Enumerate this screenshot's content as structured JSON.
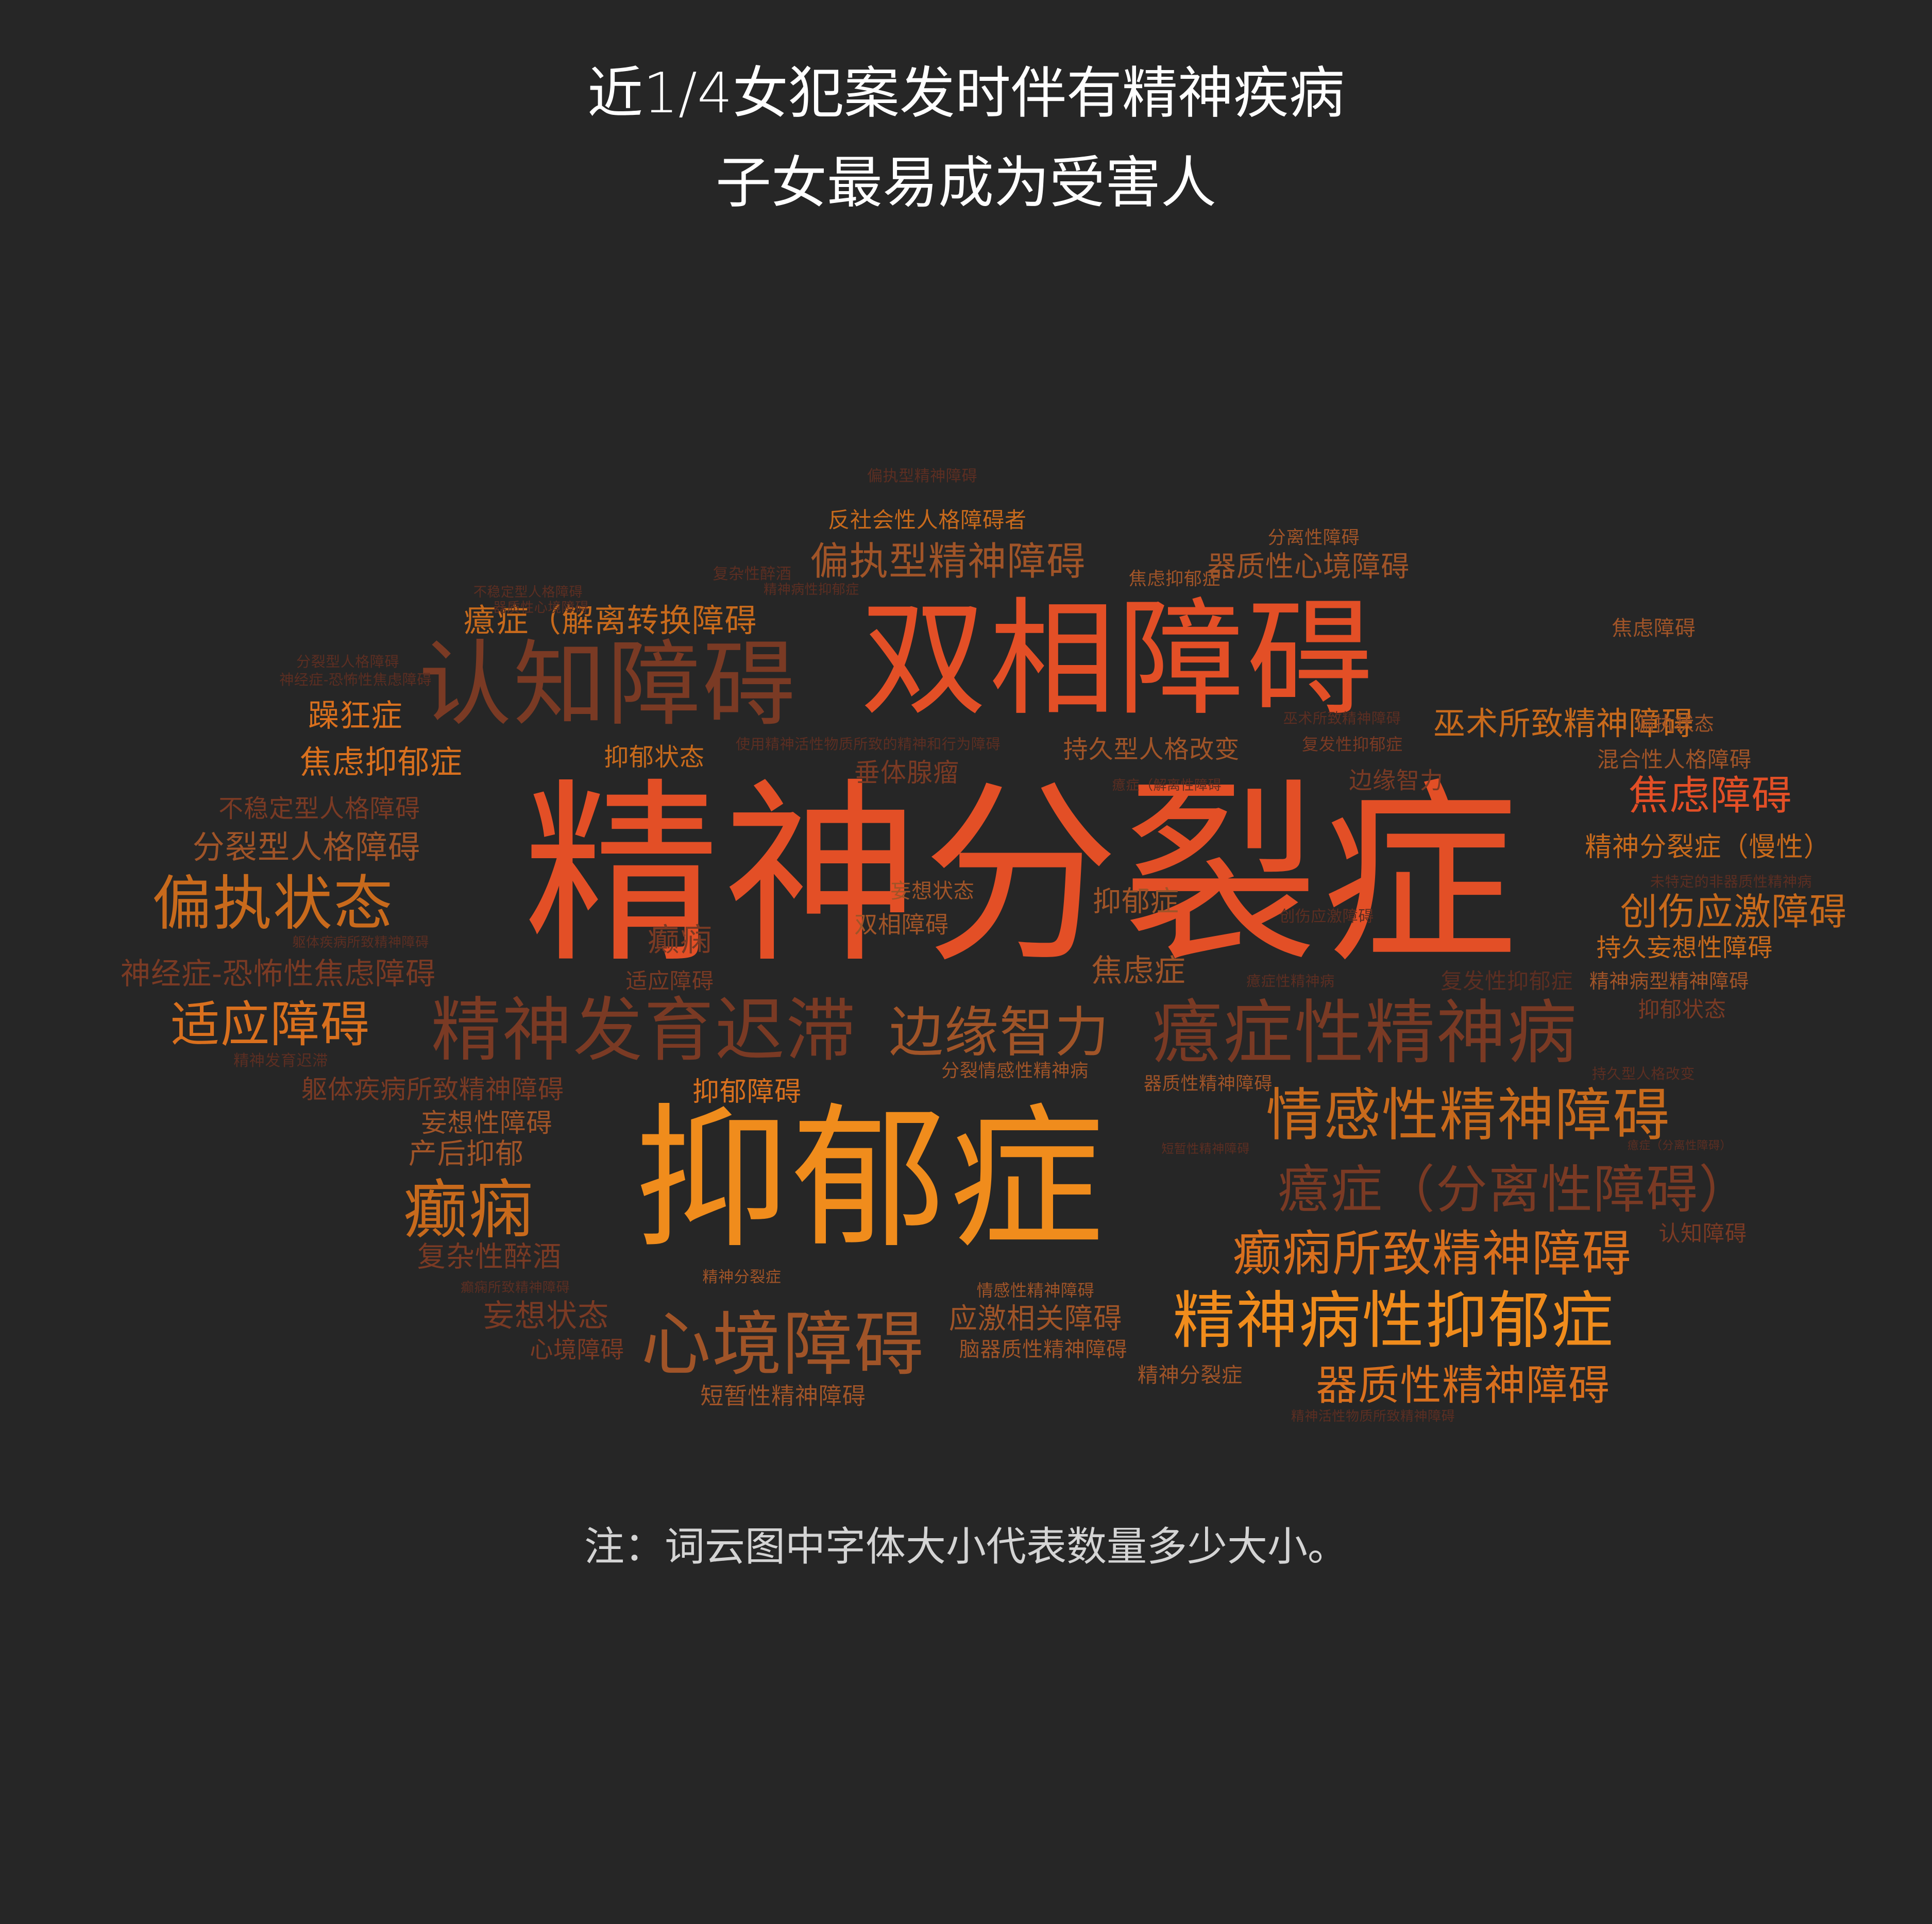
{
  "title": {
    "line1": "近1/4女犯案发时伴有精神疾病",
    "line2": "子女最易成为受害人"
  },
  "note": "注：词云图中字体大小代表数量多少大小。",
  "colors": {
    "background": "#262626",
    "title_text": "#ffffff",
    "note_text": "#d4d4d4",
    "palette": [
      "#e34f26",
      "#f08c1c",
      "#c86a1c",
      "#7a3a24",
      "#a05428",
      "#d9701e",
      "#5c2e22"
    ]
  },
  "word_cloud": {
    "words": [
      {
        "text": "精神分裂症",
        "c": 0
      },
      {
        "text": "抑郁症",
        "c": 1
      },
      {
        "text": "双相障碍",
        "c": 0
      },
      {
        "text": "认知障碍",
        "c": 3
      },
      {
        "text": "精神发育迟滞",
        "c": 3
      },
      {
        "text": "癔症性精神病",
        "c": 3
      },
      {
        "text": "边缘智力",
        "c": 4
      },
      {
        "text": "心境障碍",
        "c": 4
      },
      {
        "text": "精神病性抑郁症",
        "c": 1
      },
      {
        "text": "情感性精神障碍",
        "c": 2
      },
      {
        "text": "癔症（分离性障碍）",
        "c": 3
      },
      {
        "text": "癫痫所致精神障碍",
        "c": 5
      },
      {
        "text": "器质性精神障碍",
        "c": 5
      },
      {
        "text": "偏执状态",
        "c": 2
      },
      {
        "text": "癫痫",
        "c": 2
      },
      {
        "text": "适应障碍",
        "c": 5
      },
      {
        "text": "焦虑障碍",
        "c": 0
      },
      {
        "text": "创伤应激障碍",
        "c": 2
      },
      {
        "text": "偏执型精神障碍",
        "c": 4
      },
      {
        "text": "癔症（解离转换障碍",
        "c": 2
      },
      {
        "text": "巫术所致精神障碍",
        "c": 2
      },
      {
        "text": "焦虑抑郁症",
        "c": 5
      },
      {
        "text": "躁狂症",
        "c": 5
      },
      {
        "text": "分裂型人格障碍",
        "c": 4
      },
      {
        "text": "神经症-恐怖性焦虑障碍",
        "c": 3
      },
      {
        "text": "妄想状态",
        "c": 3
      },
      {
        "text": "应激相关障碍",
        "c": 4
      },
      {
        "text": "短暂性精神障碍",
        "c": 4
      },
      {
        "text": "器质性心境障碍",
        "c": 4
      },
      {
        "text": "反社会性人格障碍者",
        "c": 2
      },
      {
        "text": "精神分裂症（慢性）",
        "c": 2
      },
      {
        "text": "持久妄想性障碍",
        "c": 2
      },
      {
        "text": "混合性人格障碍",
        "c": 4
      },
      {
        "text": "抑郁状态",
        "c": 2
      },
      {
        "text": "持久型人格改变",
        "c": 4
      },
      {
        "text": "垂体腺瘤",
        "c": 3
      },
      {
        "text": "抑郁障碍",
        "c": 5
      },
      {
        "text": "抑郁症",
        "c": 4
      },
      {
        "text": "焦虑症",
        "c": 4
      },
      {
        "text": "癫痫",
        "c": 3
      },
      {
        "text": "产后抑郁",
        "c": 4
      },
      {
        "text": "妄想性障碍",
        "c": 4
      },
      {
        "text": "躯体疾病所致精神障碍",
        "c": 3
      },
      {
        "text": "复杂性醉酒",
        "c": 3
      },
      {
        "text": "心境障碍",
        "c": 3
      },
      {
        "text": "精神分裂症",
        "c": 4
      },
      {
        "text": "认知障碍",
        "c": 3
      },
      {
        "text": "分离性障碍",
        "c": 4
      },
      {
        "text": "焦虑抑郁症",
        "c": 4
      },
      {
        "text": "焦虑障碍",
        "c": 4
      },
      {
        "text": "偏执状态",
        "c": 4
      },
      {
        "text": "不稳定型人格障碍",
        "c": 3
      },
      {
        "text": "妄想状态",
        "c": 4
      },
      {
        "text": "双相障碍",
        "c": 4
      },
      {
        "text": "适应障碍",
        "c": 3
      },
      {
        "text": "抑郁状态",
        "c": 3
      },
      {
        "text": "边缘智力",
        "c": 3
      },
      {
        "text": "复发性抑郁症",
        "c": 3
      },
      {
        "text": "复发性抑郁症",
        "c": 6
      },
      {
        "text": "精神病型精神障碍",
        "c": 4
      },
      {
        "text": "未特定的非器质性精神病",
        "c": 6
      },
      {
        "text": "分裂情感性精神病",
        "c": 4
      },
      {
        "text": "器质性精神障碍",
        "c": 4
      },
      {
        "text": "情感性精神障碍",
        "c": 4
      },
      {
        "text": "脑器质性精神障碍",
        "c": 4
      },
      {
        "text": "精神分裂症",
        "c": 4
      },
      {
        "text": "精神发育迟滞",
        "c": 6
      },
      {
        "text": "偏执型精神障碍",
        "c": 6
      },
      {
        "text": "复杂性醉酒",
        "c": 6
      },
      {
        "text": "创伤应激障碍",
        "c": 6
      },
      {
        "text": "分裂型人格障碍",
        "c": 6
      },
      {
        "text": "癔症性精神病",
        "c": 6
      },
      {
        "text": "巫术所致精神障碍",
        "c": 6
      },
      {
        "text": "持久型人格改变",
        "c": 6
      },
      {
        "text": "不稳定型人格障碍",
        "c": 6
      },
      {
        "text": "使用精神活性物质所致的精神和行为障碍",
        "c": 6
      },
      {
        "text": "癫痫所致精神障碍",
        "c": 6
      },
      {
        "text": "精神活性物质所致精神障碍",
        "c": 6
      },
      {
        "text": "癔症（解离性障碍",
        "c": 6
      },
      {
        "text": "精神病性抑郁症",
        "c": 6
      },
      {
        "text": "躯体疾病所致精神障碍",
        "c": 6
      },
      {
        "text": "癔症（分离性障碍）",
        "c": 6
      },
      {
        "text": "器质性心境障碍",
        "c": 6
      },
      {
        "text": "神经症-恐怖性焦虑障碍",
        "c": 6
      },
      {
        "text": "短暂性精神障碍",
        "c": 6
      }
    ]
  }
}
